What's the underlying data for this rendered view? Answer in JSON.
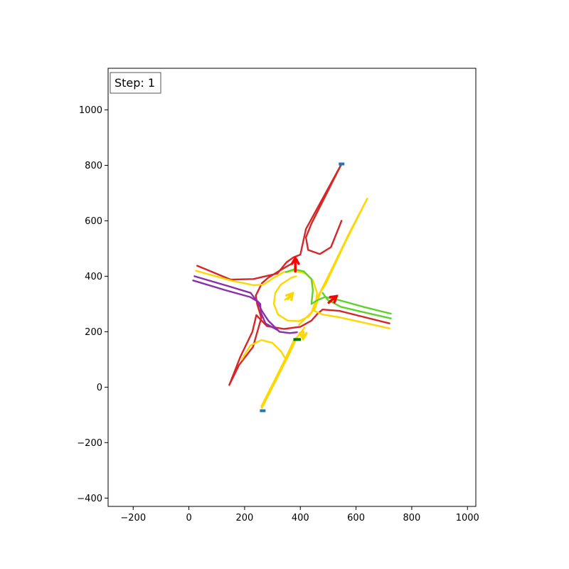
{
  "chart_data": {
    "type": "line",
    "title": "",
    "xlabel": "",
    "ylabel": "",
    "xlim": [
      -290,
      1030
    ],
    "ylim": [
      -430,
      1150
    ],
    "xticks": [
      -200,
      0,
      200,
      400,
      600,
      800,
      1000
    ],
    "yticks": [
      -400,
      -200,
      0,
      200,
      400,
      600,
      800,
      1000
    ],
    "grid": false,
    "annotation": {
      "label": "Step: 1"
    },
    "colors": {
      "red": "#d62728",
      "yellow": "#ffd700",
      "green": "#5fd22a",
      "purple": "#8b2fa8",
      "arrow_red": "#ff0000",
      "endpoint_blue": "#1f77b4",
      "bar_green": "#007a00"
    },
    "series": [
      {
        "color": "red",
        "points": [
          [
            548,
            805
          ],
          [
            420,
            570
          ],
          [
            400,
            478
          ],
          [
            375,
            468
          ],
          [
            350,
            450
          ],
          [
            318,
            410
          ],
          [
            232,
            390
          ],
          [
            150,
            388
          ],
          [
            30,
            438
          ]
        ]
      },
      {
        "color": "red",
        "points": [
          [
            548,
            805
          ],
          [
            440,
            590
          ],
          [
            420,
            540
          ],
          [
            428,
            495
          ],
          [
            470,
            480
          ],
          [
            510,
            505
          ],
          [
            548,
            600
          ]
        ]
      },
      {
        "color": "red",
        "points": [
          [
            145,
            8
          ],
          [
            185,
            110
          ],
          [
            228,
            200
          ],
          [
            242,
            260
          ],
          [
            280,
            220
          ],
          [
            342,
            210
          ],
          [
            400,
            218
          ],
          [
            440,
            240
          ],
          [
            462,
            265
          ],
          [
            480,
            280
          ],
          [
            540,
            275
          ],
          [
            720,
            230
          ]
        ]
      },
      {
        "color": "red",
        "points": [
          [
            145,
            8
          ],
          [
            180,
            80
          ],
          [
            230,
            145
          ],
          [
            260,
            250
          ],
          [
            245,
            300
          ],
          [
            240,
            330
          ],
          [
            262,
            375
          ],
          [
            285,
            395
          ],
          [
            325,
            420
          ],
          [
            368,
            445
          ],
          [
            388,
            460
          ]
        ]
      },
      {
        "color": "yellow",
        "points": [
          [
            640,
            680
          ],
          [
            560,
            520
          ],
          [
            490,
            370
          ],
          [
            470,
            340
          ],
          [
            455,
            310
          ],
          [
            440,
            270
          ],
          [
            418,
            248
          ],
          [
            395,
            225
          ]
        ]
      },
      {
        "color": "yellow",
        "points": [
          [
            640,
            680
          ],
          [
            575,
            555
          ],
          [
            510,
            420
          ],
          [
            475,
            350
          ],
          [
            458,
            300
          ],
          [
            450,
            275
          ],
          [
            480,
            262
          ],
          [
            540,
            252
          ],
          [
            720,
            212
          ]
        ]
      },
      {
        "color": "yellow",
        "points": [
          [
            260,
            -70
          ],
          [
            300,
            10
          ],
          [
            345,
            100
          ],
          [
            375,
            165
          ],
          [
            400,
            195
          ],
          [
            415,
            215
          ]
        ]
      },
      {
        "color": "yellow",
        "points": [
          [
            262,
            -75
          ],
          [
            310,
            20
          ],
          [
            360,
            120
          ],
          [
            388,
            180
          ]
        ]
      },
      {
        "color": "yellow",
        "points": [
          [
            190,
            100
          ],
          [
            220,
            150
          ],
          [
            260,
            170
          ],
          [
            300,
            160
          ],
          [
            330,
            130
          ],
          [
            345,
            105
          ]
        ]
      },
      {
        "color": "yellow",
        "points": [
          [
            25,
            420
          ],
          [
            150,
            385
          ],
          [
            232,
            368
          ],
          [
            268,
            370
          ],
          [
            305,
            395
          ],
          [
            340,
            415
          ],
          [
            380,
            420
          ],
          [
            418,
            410
          ],
          [
            445,
            385
          ],
          [
            460,
            340
          ],
          [
            455,
            290
          ],
          [
            430,
            255
          ],
          [
            395,
            238
          ],
          [
            355,
            240
          ],
          [
            320,
            262
          ],
          [
            305,
            300
          ],
          [
            310,
            340
          ],
          [
            330,
            370
          ],
          [
            368,
            395
          ],
          [
            385,
            400
          ]
        ]
      },
      {
        "color": "yellow",
        "points": [
          [
            345,
            315
          ],
          [
            365,
            330
          ]
        ]
      },
      {
        "color": "green",
        "points": [
          [
            725,
            265
          ],
          [
            625,
            290
          ],
          [
            535,
            315
          ],
          [
            488,
            325
          ],
          [
            458,
            312
          ],
          [
            440,
            300
          ],
          [
            445,
            350
          ],
          [
            440,
            390
          ],
          [
            412,
            418
          ],
          [
            378,
            425
          ],
          [
            348,
            415
          ]
        ]
      },
      {
        "color": "green",
        "points": [
          [
            725,
            248
          ],
          [
            620,
            272
          ],
          [
            545,
            290
          ],
          [
            498,
            315
          ],
          [
            480,
            340
          ]
        ]
      },
      {
        "color": "purple",
        "points": [
          [
            15,
            385
          ],
          [
            130,
            350
          ],
          [
            220,
            325
          ],
          [
            245,
            310
          ],
          [
            262,
            275
          ],
          [
            285,
            240
          ],
          [
            325,
            200
          ],
          [
            362,
            195
          ],
          [
            388,
            198
          ]
        ]
      },
      {
        "color": "purple",
        "points": [
          [
            20,
            400
          ],
          [
            140,
            365
          ],
          [
            222,
            340
          ],
          [
            238,
            318
          ],
          [
            256,
            300
          ],
          [
            258,
            270
          ],
          [
            275,
            230
          ],
          [
            320,
            205
          ]
        ]
      }
    ],
    "markers": {
      "red_arrows": [
        [
          [
            382,
            418
          ],
          [
            382,
            465
          ]
        ],
        [
          [
            502,
            305
          ],
          [
            530,
            328
          ]
        ]
      ],
      "yellow_arrows": [
        [
          [
            355,
            318
          ],
          [
            372,
            338
          ]
        ],
        [
          [
            410,
            200
          ],
          [
            410,
            175
          ]
        ]
      ],
      "blue_endpoints": [
        [
          548,
          805
        ],
        [
          265,
          -85
        ]
      ],
      "green_bar": [
        [
          375,
          172
        ],
        [
          402,
          172
        ]
      ]
    }
  }
}
